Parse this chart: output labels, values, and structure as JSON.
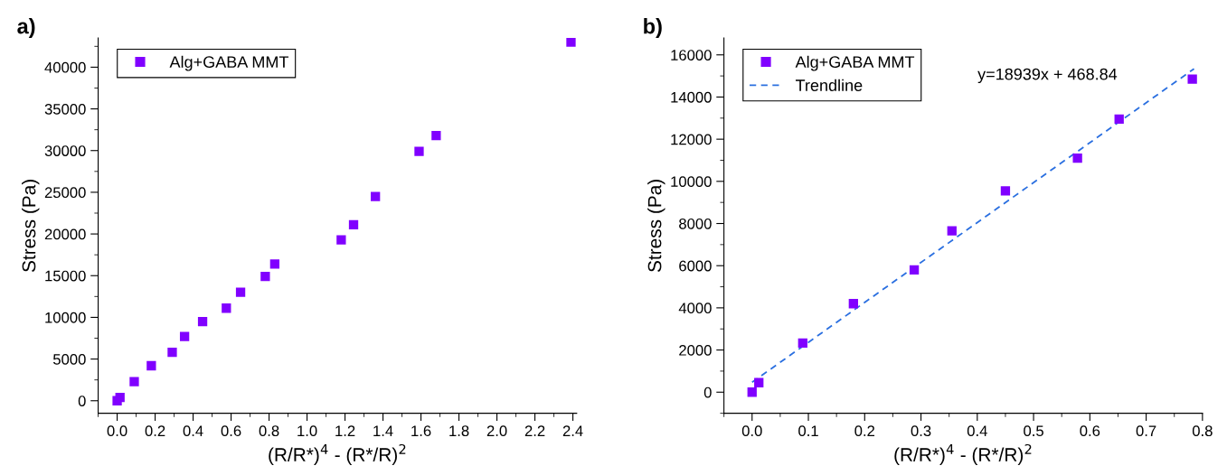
{
  "chart_data": [
    {
      "type": "scatter",
      "title": "a)",
      "xlabel": "(R/R*)$^{4}$ - (R*/R)$^{2}$",
      "ylabel": "Stress (Pa)",
      "series": [
        {
          "name": "Alg+GABA MMT",
          "color": "#8000ff",
          "x": [
            0,
            0.015,
            0.09,
            0.18,
            0.29,
            0.355,
            0.45,
            0.575,
            0.65,
            0.78,
            0.83,
            1.18,
            1.245,
            1.36,
            1.59,
            1.68,
            2.39
          ],
          "values": [
            0,
            400,
            2300,
            4200,
            5800,
            7700,
            9500,
            11100,
            13000,
            14900,
            16400,
            19300,
            21100,
            24500,
            29900,
            31800,
            43000
          ]
        }
      ],
      "xlim": [
        -0.1,
        2.42
      ],
      "xticks": [
        {
          "value": 0,
          "label": "0.0"
        },
        0.2,
        0.4,
        0.6,
        0.8,
        {
          "value": 1,
          "label": "1.0"
        },
        1.2,
        1.4,
        1.6,
        1.8,
        {
          "value": 2,
          "label": "2.0"
        },
        2.2,
        2.4
      ],
      "ylim": [
        -1500,
        43500
      ],
      "yticks": [
        0,
        5000,
        10000,
        15000,
        20000,
        25000,
        30000,
        35000,
        40000
      ],
      "marker": "square",
      "legend": "top left",
      "grid": false
    },
    {
      "type": "scatter",
      "title": "b)",
      "xlabel": "(R/R*)$^{4}$ - (R*/R)$^{2}$",
      "ylabel": "Stress (Pa)",
      "series": [
        {
          "name": "Alg+GABA MMT",
          "color": "#8000ff",
          "x": [
            0,
            0.012,
            0.09,
            0.18,
            0.288,
            0.355,
            0.45,
            0.578,
            0.652,
            0.782
          ],
          "values": [
            0,
            450,
            2330,
            4200,
            5800,
            7650,
            9550,
            11100,
            12950,
            14850
          ]
        },
        {
          "name": "Trendline",
          "type": "line",
          "line_style": "dashed",
          "marker": "none",
          "color": "#2a6fe0",
          "x": [
            0,
            0.785
          ],
          "values": [
            470,
            15340
          ]
        }
      ],
      "annotations": [
        "y=18939x + 468.84"
      ],
      "xlim": [
        -0.05,
        0.8
      ],
      "xticks": [
        {
          "value": 0,
          "label": "0.0"
        },
        0.1,
        0.2,
        0.3,
        0.4,
        0.5,
        0.6,
        0.7,
        0.8
      ],
      "ylim": [
        -1000,
        16800
      ],
      "yticks": [
        0,
        2000,
        4000,
        6000,
        8000,
        10000,
        12000,
        14000,
        16000
      ],
      "marker": "square",
      "legend": "top left",
      "grid": false
    }
  ]
}
